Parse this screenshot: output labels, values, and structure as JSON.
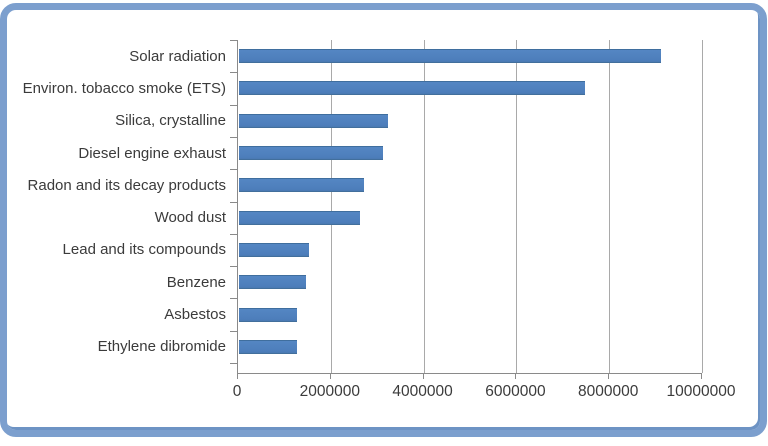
{
  "chart_data": {
    "type": "bar",
    "orientation": "horizontal",
    "title": "",
    "xlabel": "",
    "ylabel": "",
    "categories": [
      "Solar radiation",
      "Environ. tobacco smoke (ETS)",
      "Silica, crystalline",
      "Diesel engine exhaust",
      "Radon and its decay products",
      "Wood dust",
      "Lead and its compounds",
      "Benzene",
      "Asbestos",
      "Ethylene dibromide"
    ],
    "values": [
      9100000,
      7450000,
      3200000,
      3100000,
      2700000,
      2600000,
      1500000,
      1450000,
      1250000,
      1250000
    ],
    "xlim": [
      0,
      10000000
    ],
    "x_ticks": [
      0,
      2000000,
      4000000,
      6000000,
      8000000,
      10000000
    ],
    "x_tick_labels": [
      "0",
      "2000000",
      "4000000",
      "6000000",
      "8000000",
      "10000000"
    ],
    "grid": true,
    "legend": false,
    "colors": {
      "bar": "#4d7ebb",
      "bar_border": "#3f6e9e",
      "gridline": "#a9a9a9",
      "axis": "#8a8a8a",
      "text": "#3b3b3b",
      "frame_border": "#7c9fce",
      "background": "#ffffff"
    }
  }
}
